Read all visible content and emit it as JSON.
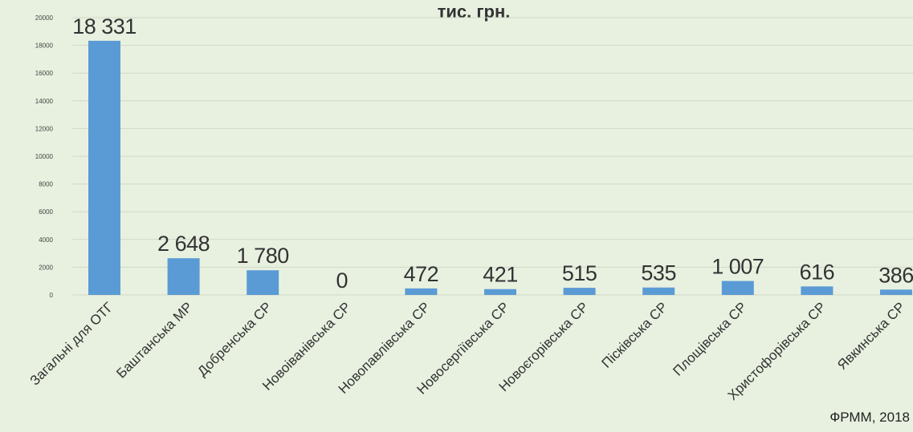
{
  "title": "тис. грн.",
  "source": "ФРММ, 2018",
  "colors": {
    "bar": "#5b9bd5",
    "grid": "#cfd8c6",
    "text": "#444444"
  },
  "chart_data": {
    "type": "bar",
    "title": "тис. грн.",
    "categories": [
      "Загальні для ОТГ",
      "Баштанська МР",
      "Добренська СР",
      "Новоіванівська СР",
      "Новопавлівська СР",
      "Новосергіївська СР",
      "Новоєгорівська СР",
      "Пісківська СР",
      "Площівська СР",
      "Христофорівська СР",
      "Явкинська СР"
    ],
    "values": [
      18331,
      2648,
      1780,
      0,
      472,
      421,
      515,
      535,
      1007,
      616,
      386
    ],
    "value_labels": [
      "18 331",
      "2 648",
      "1 780",
      "0",
      "472",
      "421",
      "515",
      "535",
      "1 007",
      "616",
      "386"
    ],
    "yticks": [
      0,
      2000,
      4000,
      6000,
      8000,
      10000,
      12000,
      14000,
      16000,
      18000,
      20000
    ],
    "ylim": [
      0,
      20000
    ],
    "grid": true,
    "legend": "none"
  }
}
